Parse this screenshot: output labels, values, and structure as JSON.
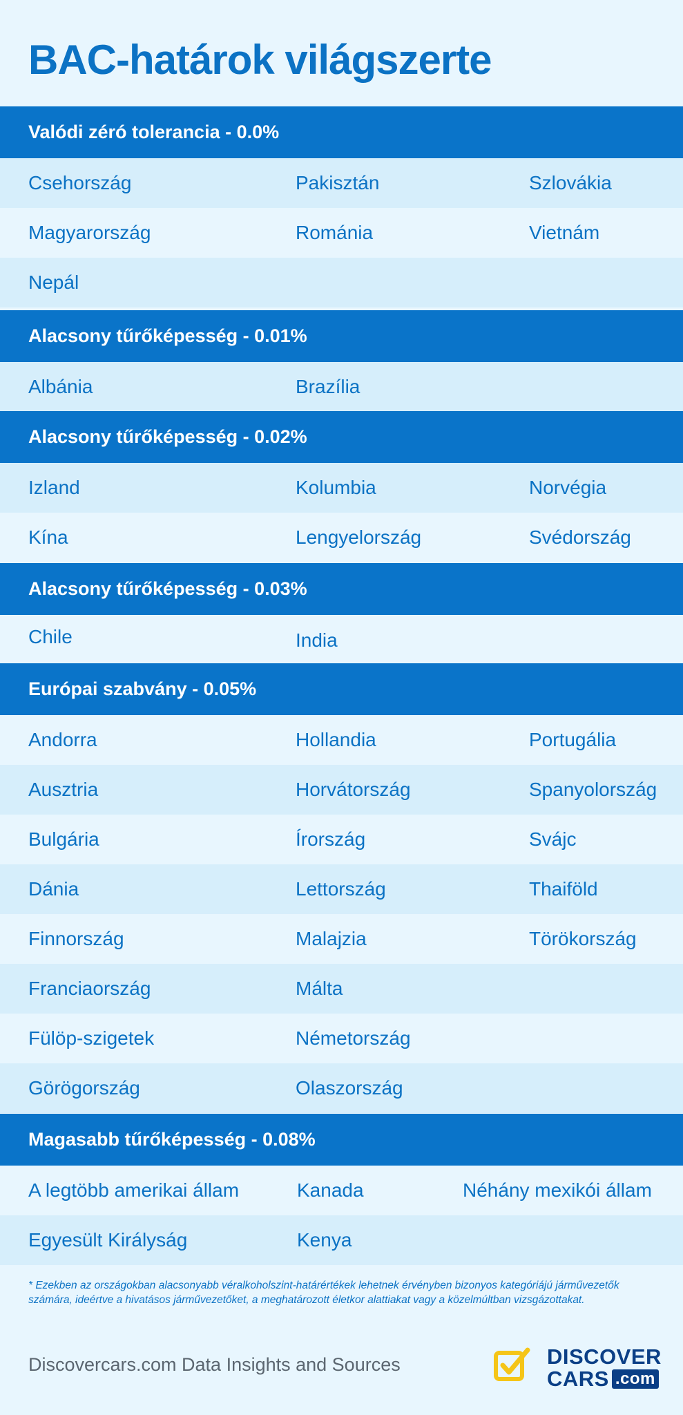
{
  "title": "BAC-határok világszerte",
  "sections": [
    {
      "header": "Valódi zéró tolerancia - 0.0%",
      "rows": [
        [
          "Csehország",
          "Pakisztán",
          "Szlovákia"
        ],
        [
          "Magyarország",
          "Románia",
          "Vietnám"
        ],
        [
          "Nepál",
          "",
          ""
        ]
      ]
    },
    {
      "header": "Alacsony tűrőképesség - 0.01%",
      "rows": [
        [
          "Albánia",
          "Brazília",
          ""
        ]
      ]
    },
    {
      "header": "Alacsony tűrőképesség - 0.02%",
      "rows": [
        [
          "Izland",
          "Kolumbia",
          "Norvégia"
        ],
        [
          "Kína",
          "Lengyelország",
          "Svédország"
        ]
      ]
    },
    {
      "header": "Alacsony tűrőképesség - 0.03%",
      "rows": [
        [
          "Chile",
          "India",
          ""
        ]
      ]
    },
    {
      "header": "Európai szabvány - 0.05%",
      "rows": [
        [
          "Andorra",
          "Hollandia",
          "Portugália"
        ],
        [
          "Ausztria",
          "Horvátország",
          "Spanyolország"
        ],
        [
          "Bulgária",
          "Írország",
          "Svájc"
        ],
        [
          "Dánia",
          "Lettország",
          "Thaiföld"
        ],
        [
          "Finnország",
          "Malajzia",
          "Törökország"
        ],
        [
          "Franciaország",
          "Málta",
          ""
        ],
        [
          "Fülöp-szigetek",
          "Németország",
          ""
        ],
        [
          "Görögország",
          "Olaszország",
          ""
        ]
      ]
    },
    {
      "header": "Magasabb tűrőképesség - 0.08%",
      "rows": [
        [
          "A legtöbb amerikai állam",
          "Kanada",
          "Néhány mexikói állam"
        ],
        [
          "Egyesült Királyság",
          "Kenya",
          ""
        ]
      ]
    }
  ],
  "footnote": "* Ezekben az országokban alacsonyabb véralkoholszint-határértékek lehetnek érvényben bizonyos kategóriájú járművezetők számára, ideértve a hivatásos járművezetőket, a meghatározott életkor alattiakat vagy a közelmúltban vizsgázottakat.",
  "sources": "Discovercars.com Data Insights and Sources",
  "logo": {
    "line1": "DISCOVER",
    "line2": "CARS",
    "suffix": ".com",
    "icon": "checkbox-check-icon"
  },
  "colors": {
    "background": "#e8f6fe",
    "header": "#0a74c9",
    "row_shade": "#d6eefb",
    "text": "#0b72c4",
    "logo_yellow": "#f5c518",
    "logo_navy": "#0b3f86"
  }
}
